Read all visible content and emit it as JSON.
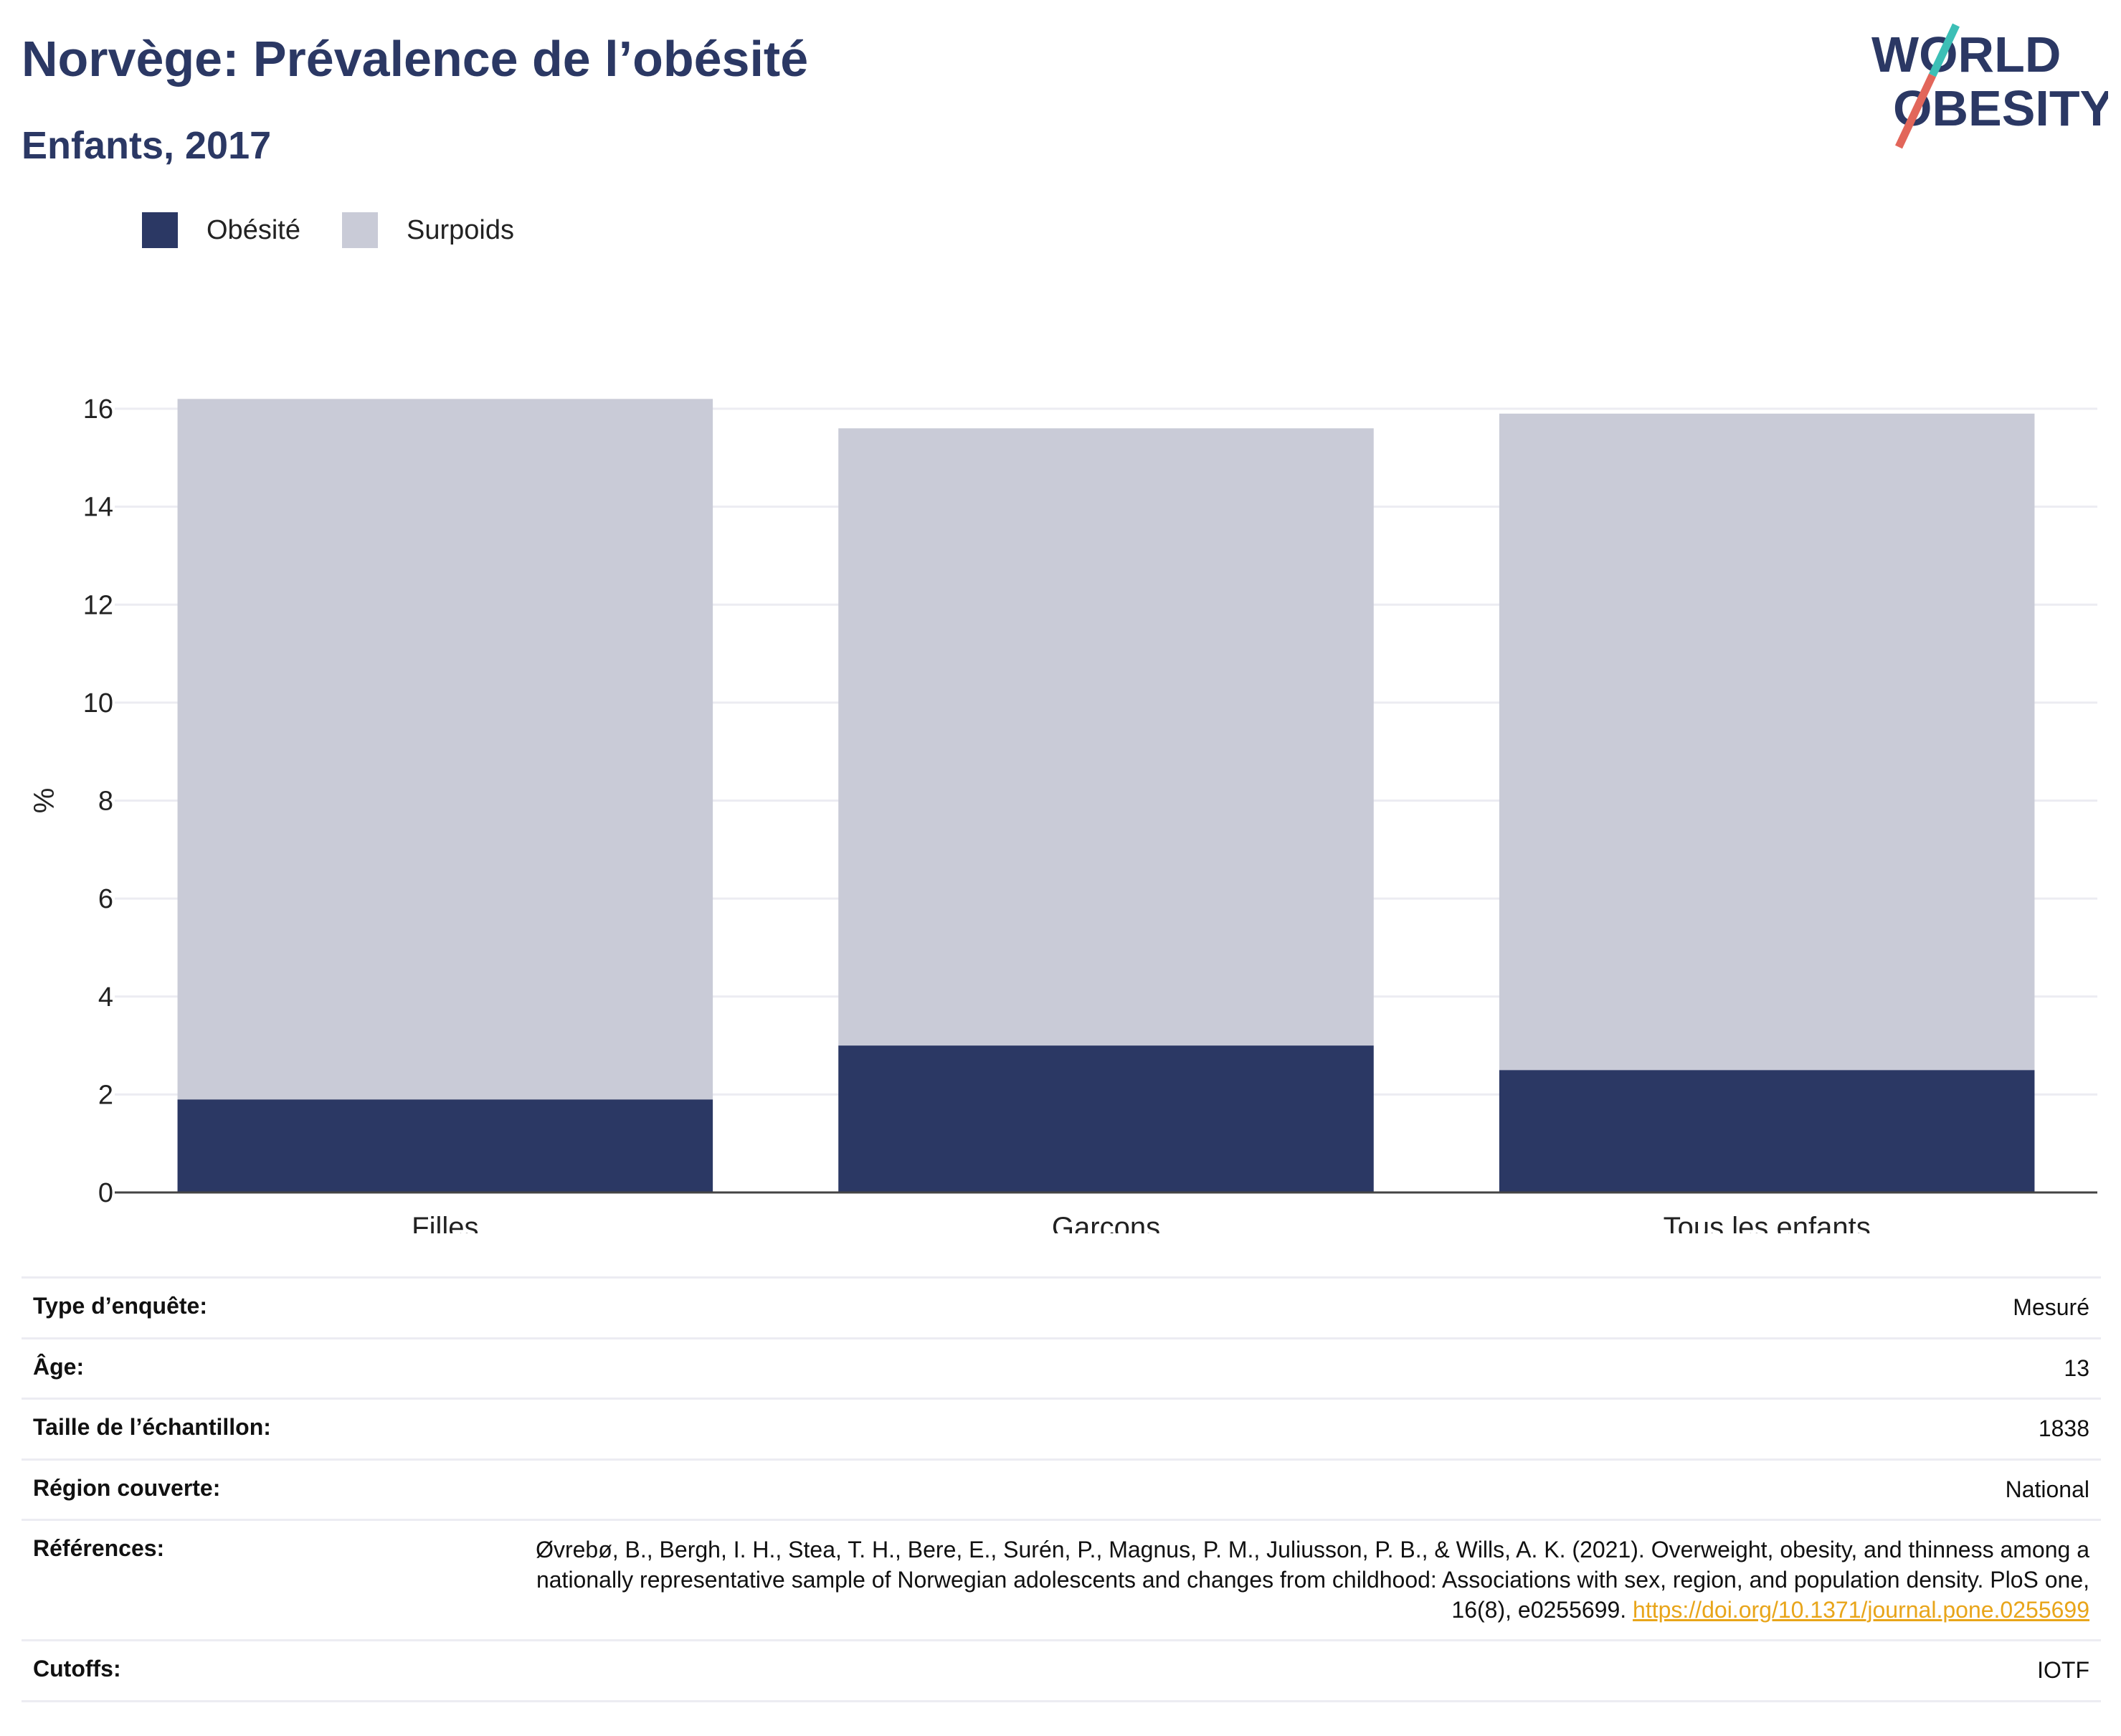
{
  "header": {
    "title": "Norvège: Prévalence de l’obésité",
    "subtitle": "Enfants, 2017",
    "logo_text_line1": "WORLD",
    "logo_text_line2": "OBESITY"
  },
  "colors": {
    "obesity": "#2b3864",
    "overweight": "#c9cbd7",
    "brand": "#2b3864",
    "logo_teal": "#3cbfb6",
    "logo_coral": "#e2665a",
    "link": "#e8a51a"
  },
  "legend": [
    {
      "label": "Obésité",
      "color": "#2b3864"
    },
    {
      "label": "Surpoids",
      "color": "#c9cbd7"
    }
  ],
  "chart_data": {
    "type": "bar",
    "stacked": true,
    "categories": [
      "Filles",
      "Garçons",
      "Tous les enfants"
    ],
    "series": [
      {
        "name": "Obésité",
        "values": [
          1.9,
          3.0,
          2.5
        ]
      },
      {
        "name": "Surpoids",
        "values": [
          14.3,
          12.6,
          13.4
        ]
      }
    ],
    "ylabel": "%",
    "ylim": [
      0,
      16
    ],
    "yticks": [
      0,
      2,
      4,
      6,
      8,
      10,
      12,
      14,
      16
    ],
    "grid": true,
    "legend_position": "top-left"
  },
  "info": [
    {
      "key": "Type d’enquête:",
      "value": "Mesuré"
    },
    {
      "key": "Âge:",
      "value": "13"
    },
    {
      "key": "Taille de l’échantillon:",
      "value": "1838"
    },
    {
      "key": "Région couverte:",
      "value": "National"
    },
    {
      "key": "Références:",
      "value": "Øvrebø, B., Bergh, I. H., Stea, T. H., Bere, E., Surén, P., Magnus, P. M., Juliusson, P. B., & Wills, A. K. (2021). Overweight, obesity, and thinness among a nationally representative sample of Norwegian adolescents and changes from childhood: Associations with sex, region, and population density. PloS one, 16(8), e0255699.",
      "link": "https://doi.org/10.1371/journal.pone.0255699"
    },
    {
      "key": "Cutoffs:",
      "value": "IOTF"
    }
  ]
}
